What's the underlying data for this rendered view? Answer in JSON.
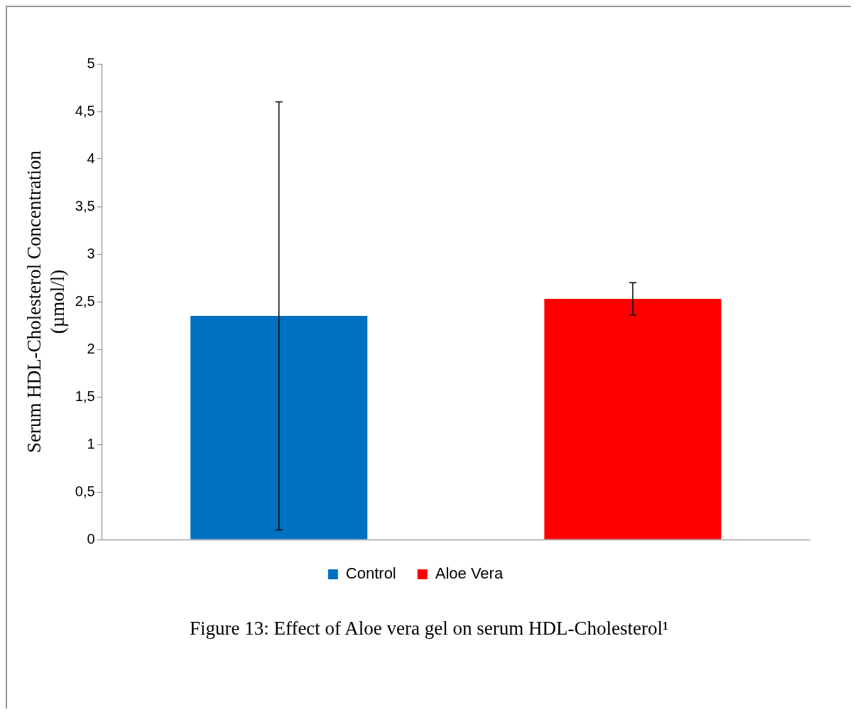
{
  "chart_data": {
    "type": "bar",
    "title": "Figure 13: Effect of Aloe vera gel on serum HDL-Cholesterol¹",
    "ylabel": "Serum HDL-Cholesterol Concentration\n(µmol/l)",
    "categories": [
      null
    ],
    "series": [
      {
        "name": "Control",
        "color": "#0070c0",
        "values": [
          2.35
        ],
        "errors": [
          2.25
        ]
      },
      {
        "name": "Aloe Vera",
        "color": "#ff0000",
        "values": [
          2.53
        ],
        "errors": [
          0.17
        ]
      }
    ],
    "ylim": [
      0,
      5
    ],
    "yticks": [
      0,
      {
        "value": 0.5,
        "label": "0,5"
      },
      1,
      {
        "value": 1.5,
        "label": "1,5"
      },
      2,
      {
        "value": 2.5,
        "label": "2,5"
      },
      3,
      {
        "value": 3.5,
        "label": "3,5"
      },
      4,
      {
        "value": 4.5,
        "label": "4,5"
      },
      5
    ],
    "grid": false,
    "legend": "bottom"
  }
}
